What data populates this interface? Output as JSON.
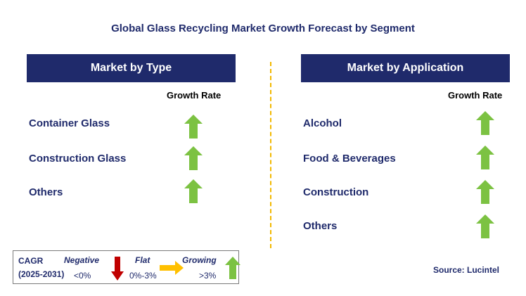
{
  "title": "Global Glass Recycling Market Growth Forecast by Segment",
  "left_panel": {
    "header": "Market by Type",
    "column_header": "Growth Rate",
    "rows": [
      {
        "label": "Container Glass",
        "trend": "growing"
      },
      {
        "label": "Construction Glass",
        "trend": "growing"
      },
      {
        "label": "Others",
        "trend": "growing"
      }
    ]
  },
  "right_panel": {
    "header": "Market by Application",
    "column_header": "Growth Rate",
    "rows": [
      {
        "label": "Alcohol",
        "trend": "growing"
      },
      {
        "label": "Food & Beverages",
        "trend": "growing"
      },
      {
        "label": "Construction",
        "trend": "growing"
      },
      {
        "label": "Others",
        "trend": "growing"
      }
    ]
  },
  "legend": {
    "cagr_label": "CAGR",
    "period": "(2025-2031)",
    "negative": {
      "label": "Negative",
      "range": "<0%",
      "icon": "red-down-arrow-icon"
    },
    "flat": {
      "label": "Flat",
      "range": "0%-3%",
      "icon": "orange-right-arrow-icon"
    },
    "growing": {
      "label": "Growing",
      "range": ">3%",
      "icon": "green-up-arrow-icon"
    }
  },
  "source": "Source: Lucintel",
  "colors": {
    "header_bg": "#1f2a6b",
    "text": "#1f2a6b",
    "growing": "#7cc242",
    "negative": "#c00000",
    "flat": "#ffc000",
    "divider": "#f2b800"
  }
}
